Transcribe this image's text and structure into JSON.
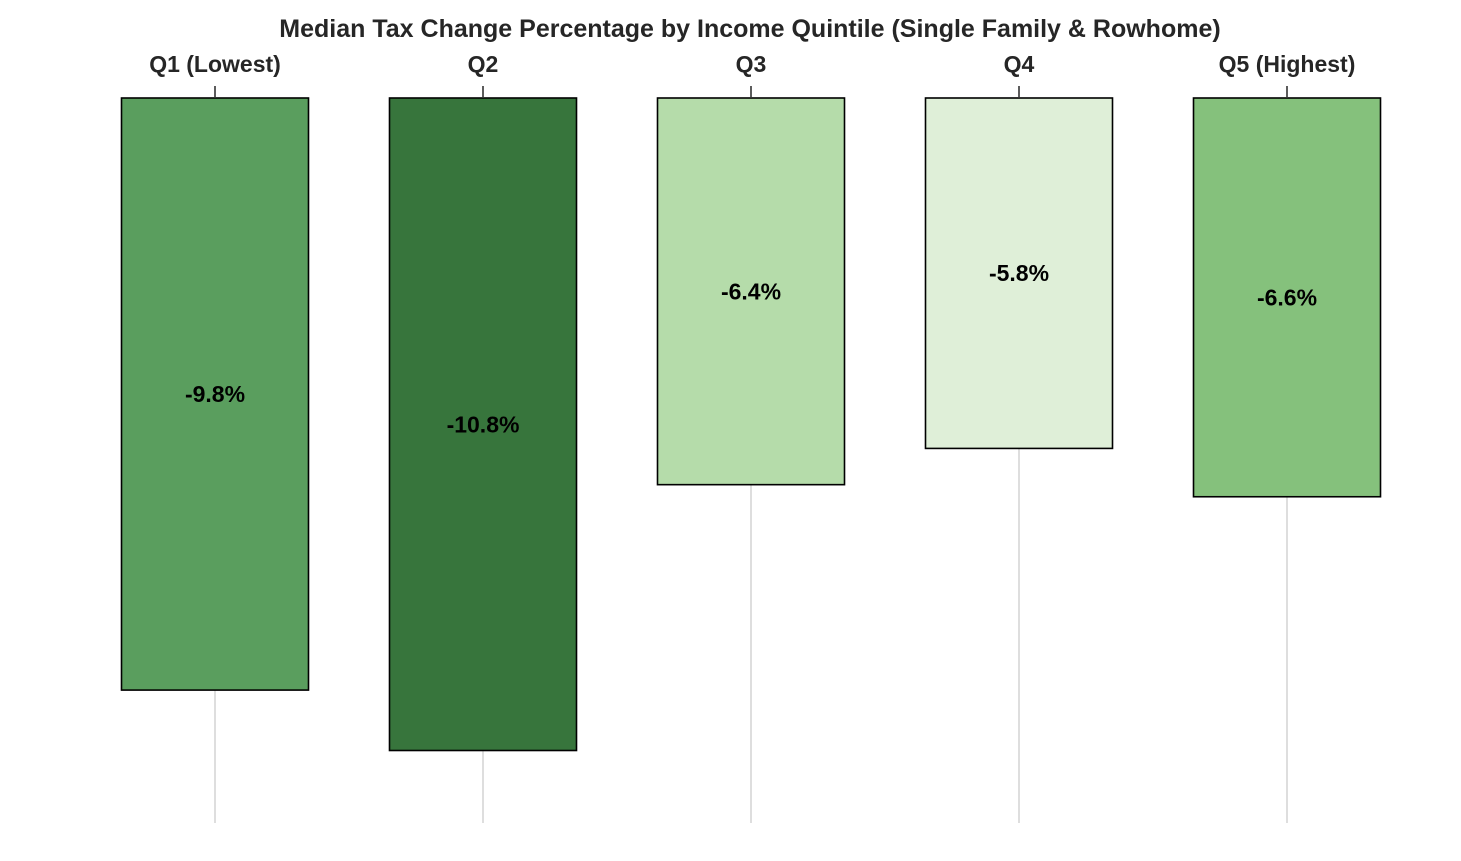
{
  "chart_data": {
    "type": "bar",
    "title": "Median Tax Change Percentage by Income Quintile (Single Family & Rowhome)",
    "xlabel": "",
    "ylabel": "",
    "x_axis_position": "top",
    "grid": true,
    "grid_axis": "x",
    "ylim": [
      -12.0,
      0
    ],
    "categories": [
      "Q1 (Lowest)",
      "Q2",
      "Q3",
      "Q4",
      "Q5 (Highest)"
    ],
    "values": [
      -9.8,
      -10.8,
      -6.4,
      -5.8,
      -6.6
    ],
    "data_labels": [
      "-9.8%",
      "-10.8%",
      "-6.4%",
      "-5.8%",
      "-6.6%"
    ],
    "bar_colors": [
      "#5a9e5e",
      "#37753c",
      "#b5dcaa",
      "#dfefd8",
      "#85c17c"
    ],
    "edge_color": "#000000",
    "grid_color": "#cccccc"
  }
}
